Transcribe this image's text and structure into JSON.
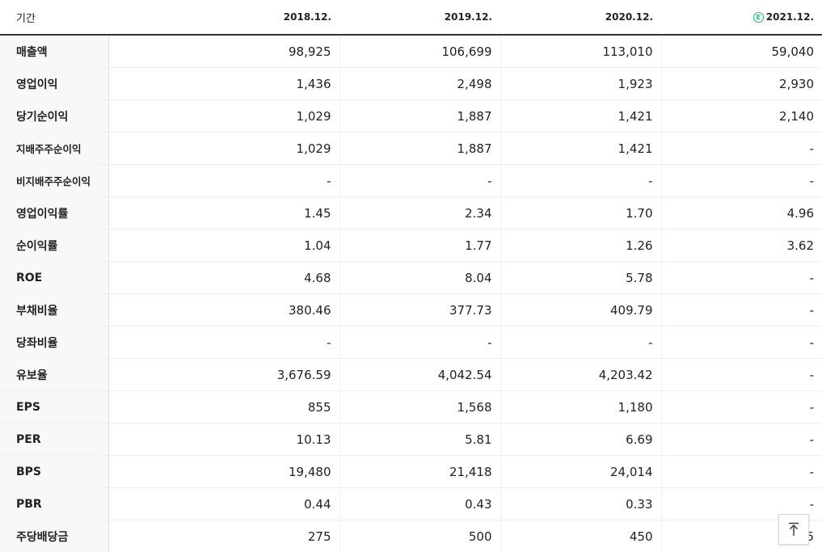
{
  "table": {
    "header": {
      "label": "기간",
      "periods": [
        "2018.12.",
        "2019.12.",
        "2020.12.",
        "2021.12."
      ],
      "estimate_badge": "E"
    },
    "rows": [
      {
        "label": "매출액",
        "values": [
          "98,925",
          "106,699",
          "113,010",
          "59,040"
        ]
      },
      {
        "label": "영업이익",
        "values": [
          "1,436",
          "2,498",
          "1,923",
          "2,930"
        ]
      },
      {
        "label": "당기순이익",
        "values": [
          "1,029",
          "1,887",
          "1,421",
          "2,140"
        ]
      },
      {
        "label": "지배주주순이익",
        "values": [
          "1,029",
          "1,887",
          "1,421",
          "-"
        ]
      },
      {
        "label": "비지배주주순이익",
        "values": [
          "-",
          "-",
          "-",
          "-"
        ]
      },
      {
        "label": "영업이익률",
        "values": [
          "1.45",
          "2.34",
          "1.70",
          "4.96"
        ]
      },
      {
        "label": "순이익률",
        "values": [
          "1.04",
          "1.77",
          "1.26",
          "3.62"
        ]
      },
      {
        "label": "ROE",
        "values": [
          "4.68",
          "8.04",
          "5.78",
          "-"
        ]
      },
      {
        "label": "부채비율",
        "values": [
          "380.46",
          "377.73",
          "409.79",
          "-"
        ]
      },
      {
        "label": "당좌비율",
        "values": [
          "-",
          "-",
          "-",
          "-"
        ]
      },
      {
        "label": "유보율",
        "values": [
          "3,676.59",
          "4,042.54",
          "4,203.42",
          "-"
        ]
      },
      {
        "label": "EPS",
        "values": [
          "855",
          "1,568",
          "1,180",
          "-"
        ]
      },
      {
        "label": "PER",
        "values": [
          "10.13",
          "5.81",
          "6.69",
          "-"
        ]
      },
      {
        "label": "BPS",
        "values": [
          "19,480",
          "21,418",
          "24,014",
          "-"
        ]
      },
      {
        "label": "PBR",
        "values": [
          "0.44",
          "0.43",
          "0.33",
          "-"
        ]
      },
      {
        "label": "주당배당금",
        "values": [
          "275",
          "500",
          "450",
          "5"
        ]
      }
    ]
  },
  "top_button": {
    "icon": "arrow-up-icon"
  },
  "colors": {
    "estimate_badge": "#2bb673",
    "header_rule": "#333333",
    "label_bg": "#f8f8f8"
  }
}
